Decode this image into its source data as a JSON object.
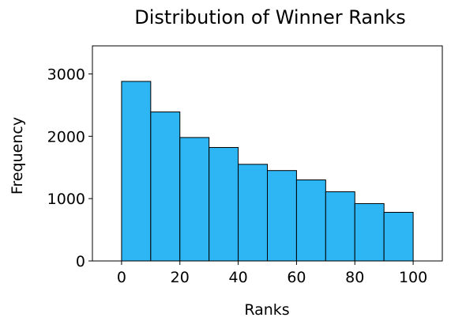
{
  "chart_data": {
    "type": "bar",
    "title": "Distribution of Winner Ranks",
    "xlabel": "Ranks",
    "ylabel": "Frequency",
    "xlim": [
      -10,
      110
    ],
    "ylim": [
      0,
      3450
    ],
    "x_ticks": [
      0,
      20,
      40,
      60,
      80,
      100
    ],
    "y_ticks": [
      0,
      1000,
      2000,
      3000
    ],
    "bin_edges": [
      0,
      10,
      20,
      30,
      40,
      50,
      60,
      70,
      80,
      90,
      100
    ],
    "values": [
      2880,
      2390,
      1980,
      1820,
      1550,
      1450,
      1300,
      1110,
      920,
      780
    ],
    "bar_color": "#2db5f4",
    "edge_color": "#000000",
    "grid": false,
    "legend": "none"
  }
}
